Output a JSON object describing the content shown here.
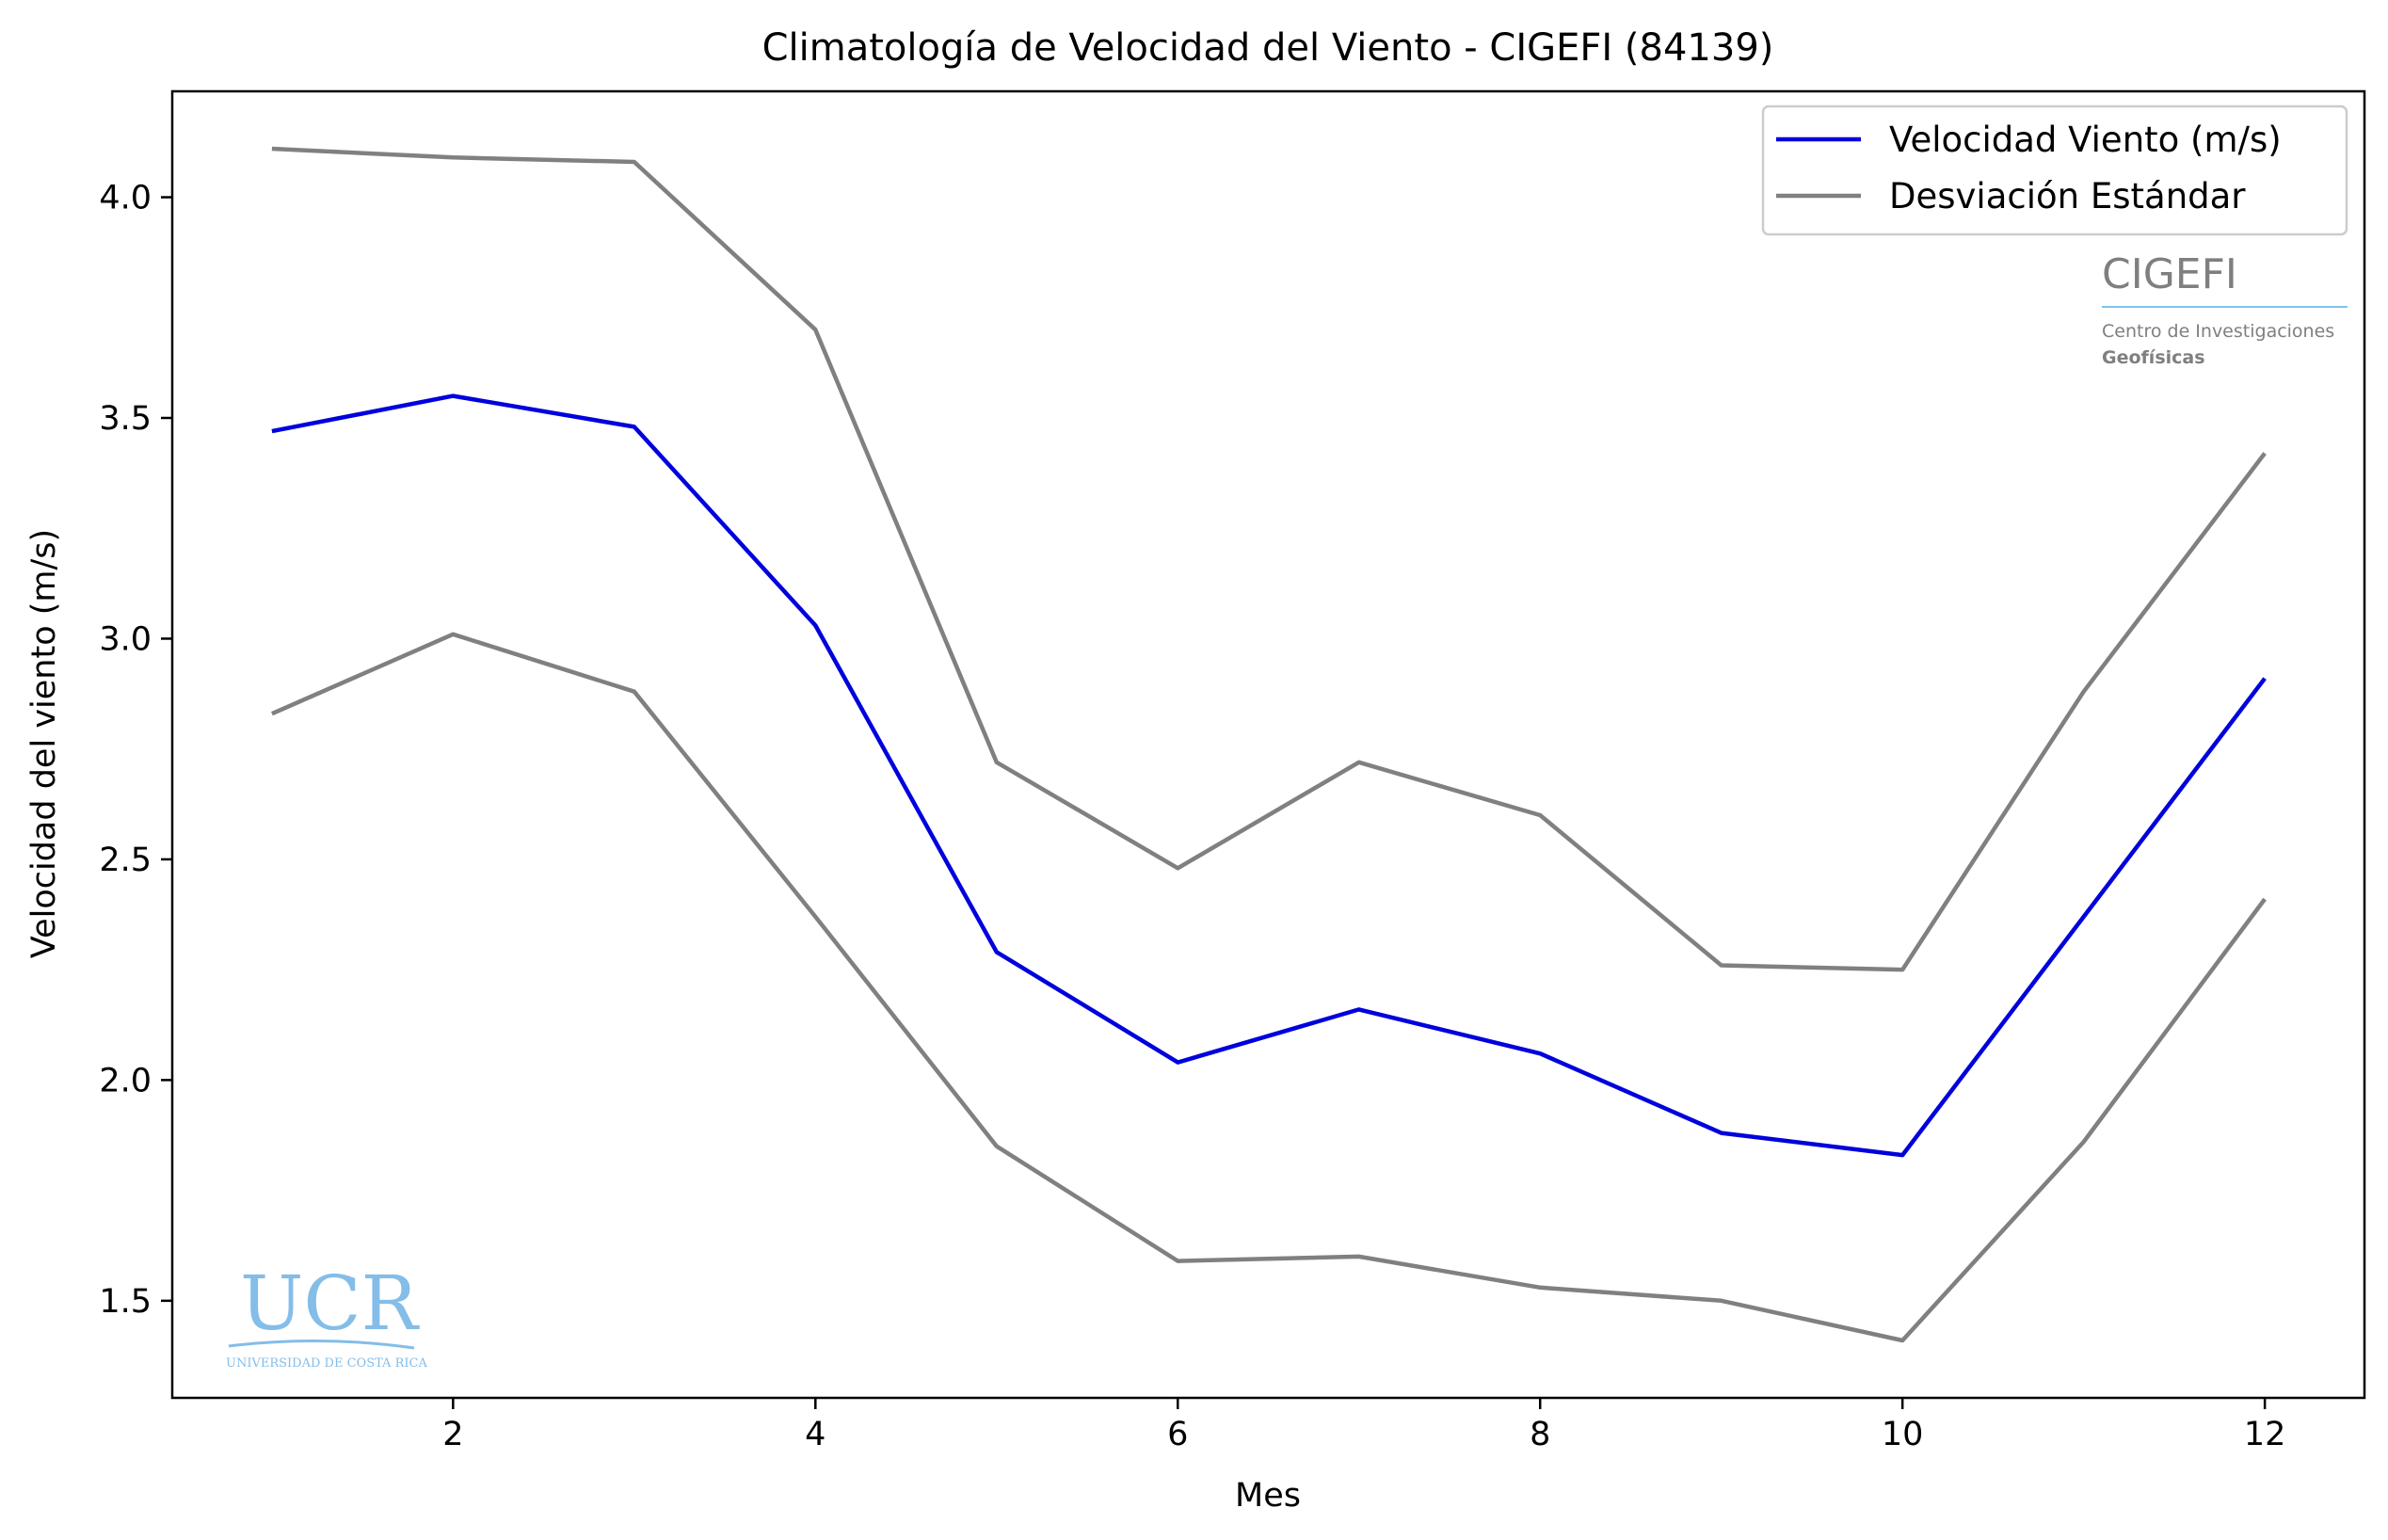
{
  "chart_data": {
    "type": "line",
    "title": "Climatología de Velocidad del Viento - CIGEFI (84139)",
    "xlabel": "Mes",
    "ylabel": "Velocidad del viento (m/s)",
    "xlim": [
      0.45,
      12.55
    ],
    "ylim": [
      1.28,
      4.24
    ],
    "x_ticks": [
      2,
      4,
      6,
      8,
      10,
      12
    ],
    "x_tick_labels": [
      "2",
      "4",
      "6",
      "8",
      "10",
      "12"
    ],
    "y_ticks": [
      1.5,
      2.0,
      2.5,
      3.0,
      3.5,
      4.0
    ],
    "y_tick_labels": [
      "1.5",
      "2.0",
      "2.5",
      "3.0",
      "3.5",
      "4.0"
    ],
    "grid": false,
    "legend_position": "top-right",
    "x": [
      1,
      2,
      3,
      4,
      5,
      6,
      7,
      8,
      9,
      10,
      11,
      12
    ],
    "series": [
      {
        "name": "Velocidad Viento (m/s)",
        "color": "#0000dd",
        "values": [
          3.47,
          3.55,
          3.48,
          3.03,
          2.29,
          2.04,
          2.16,
          2.06,
          1.88,
          1.83,
          2.37,
          2.91
        ]
      },
      {
        "name": "Desviación Estándar",
        "color": "#808080",
        "values": [
          4.11,
          4.09,
          4.08,
          3.7,
          2.72,
          2.48,
          2.72,
          2.6,
          2.26,
          2.25,
          2.88,
          3.42
        ]
      },
      {
        "name": "",
        "color": "#808080",
        "values": [
          2.83,
          3.01,
          2.88,
          2.37,
          1.85,
          1.59,
          1.6,
          1.53,
          1.5,
          1.41,
          1.86,
          2.41
        ]
      }
    ]
  },
  "logos": {
    "cigefi": {
      "name": "CIGEFI",
      "line1": "Centro de Investigaciones",
      "line2": "Geofísicas",
      "color": "#7f7f7f",
      "rule_color": "#7fc4ea"
    },
    "ucr": {
      "name": "UCR",
      "subtitle": "UNIVERSIDAD DE COSTA RICA",
      "color": "#84bde8"
    }
  }
}
